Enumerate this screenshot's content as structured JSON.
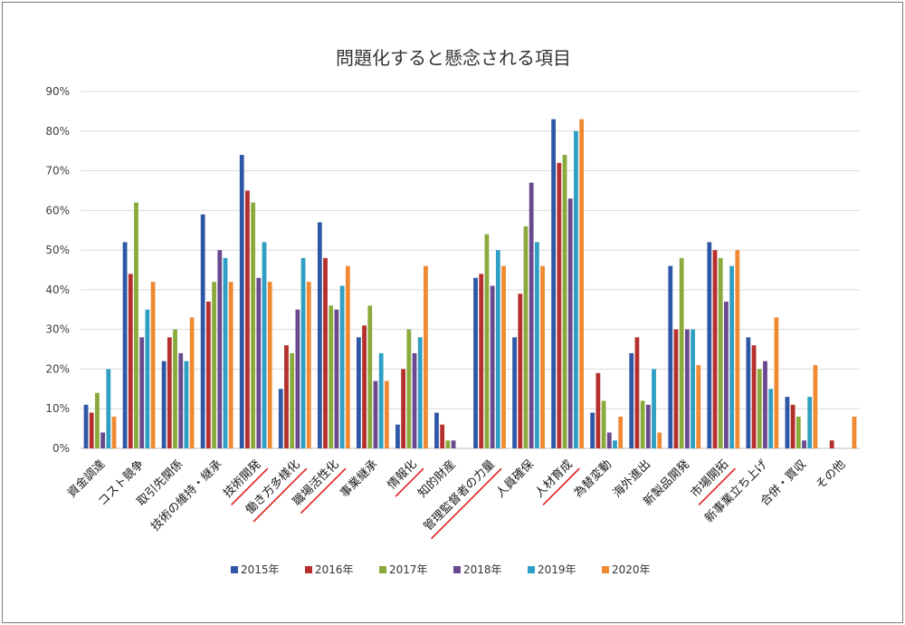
{
  "chart_data": {
    "type": "bar",
    "title": "問題化すると懸念される項目",
    "xlabel": "",
    "ylabel": "",
    "ylim": [
      0,
      90
    ],
    "yticks": [
      "0%",
      "10%",
      "20%",
      "30%",
      "40%",
      "50%",
      "60%",
      "70%",
      "80%",
      "90%"
    ],
    "grid": true,
    "legend_position": "bottom",
    "categories": [
      "資金調達",
      "コスト競争",
      "取引先関係",
      "技術の維持・継承",
      "技術開発",
      "働き方多様化",
      "職場活性化",
      "事業継承",
      "情報化",
      "知的財産",
      "管理監督者の力量",
      "人員確保",
      "人材育成",
      "為替変動",
      "海外進出",
      "新製品開発",
      "市場開拓",
      "新事業立ち上げ",
      "合併・買収",
      "その他"
    ],
    "underlined_categories": [
      "技術開発",
      "働き方多様化",
      "職場活性化",
      "情報化",
      "管理監督者の力量",
      "人材育成",
      "市場開拓"
    ],
    "series": [
      {
        "name": "2015年",
        "color": "#2e58a6",
        "values": [
          11,
          52,
          22,
          59,
          74,
          15,
          57,
          28,
          6,
          9,
          43,
          28,
          83,
          9,
          24,
          46,
          52,
          28,
          13,
          0
        ]
      },
      {
        "name": "2016年",
        "color": "#b5302d",
        "values": [
          9,
          44,
          28,
          37,
          65,
          26,
          48,
          31,
          20,
          6,
          44,
          39,
          72,
          19,
          28,
          30,
          50,
          26,
          11,
          2
        ]
      },
      {
        "name": "2017年",
        "color": "#8aaa3c",
        "values": [
          14,
          62,
          30,
          42,
          62,
          24,
          36,
          36,
          30,
          2,
          54,
          56,
          74,
          12,
          12,
          48,
          48,
          20,
          8,
          0
        ]
      },
      {
        "name": "2018年",
        "color": "#6a4a8f",
        "values": [
          4,
          28,
          24,
          50,
          43,
          35,
          35,
          17,
          24,
          2,
          41,
          67,
          63,
          4,
          11,
          30,
          37,
          22,
          2,
          0
        ]
      },
      {
        "name": "2019年",
        "color": "#2f9fc4",
        "values": [
          20,
          35,
          22,
          48,
          52,
          48,
          41,
          24,
          28,
          0,
          50,
          52,
          80,
          2,
          20,
          30,
          46,
          15,
          13,
          0
        ]
      },
      {
        "name": "2020年",
        "color": "#f08a32",
        "values": [
          8,
          42,
          33,
          42,
          42,
          42,
          46,
          17,
          46,
          0,
          46,
          46,
          83,
          8,
          4,
          21,
          50,
          33,
          21,
          8
        ]
      }
    ]
  }
}
